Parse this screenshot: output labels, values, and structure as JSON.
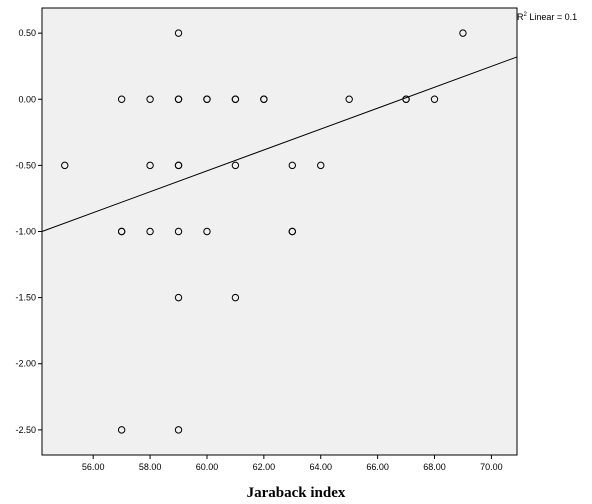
{
  "chart_data": {
    "type": "scatter",
    "title": "",
    "xlabel": "Jaraback index",
    "ylabel": "",
    "xlim": [
      54.2,
      70.9
    ],
    "ylim": [
      -2.69,
      0.69
    ],
    "xticks": [
      "56.00",
      "58.00",
      "60.00",
      "62.00",
      "64.00",
      "66.00",
      "68.00",
      "70.00"
    ],
    "yticks": [
      "0.50",
      "0.00",
      "-0.50",
      "-1.00",
      "-1.50",
      "-2.00",
      "-2.50"
    ],
    "grid": false,
    "background_color": "#f0f0f0",
    "marker_color": "#000000",
    "fit_line": {
      "type": "linear",
      "label_prefix": "R",
      "label_sup": "2",
      "label_suffix": " Linear = 0.1",
      "points": [
        [
          54.2,
          -1.0
        ],
        [
          70.9,
          0.32
        ]
      ]
    },
    "points": [
      {
        "x": 55,
        "y": -0.5
      },
      {
        "x": 57,
        "y": 0.0
      },
      {
        "x": 57,
        "y": -1.0
      },
      {
        "x": 57,
        "y": -1.0
      },
      {
        "x": 57,
        "y": -2.5
      },
      {
        "x": 58,
        "y": 0.0
      },
      {
        "x": 58,
        "y": -0.5
      },
      {
        "x": 58,
        "y": -1.0
      },
      {
        "x": 59,
        "y": 0.5
      },
      {
        "x": 59,
        "y": 0.0
      },
      {
        "x": 59,
        "y": 0.0
      },
      {
        "x": 59,
        "y": -0.5
      },
      {
        "x": 59,
        "y": -0.5
      },
      {
        "x": 59,
        "y": -1.0
      },
      {
        "x": 59,
        "y": -1.5
      },
      {
        "x": 59,
        "y": -2.5
      },
      {
        "x": 60,
        "y": 0.0
      },
      {
        "x": 60,
        "y": 0.0
      },
      {
        "x": 60,
        "y": -1.0
      },
      {
        "x": 61,
        "y": 0.0
      },
      {
        "x": 61,
        "y": 0.0
      },
      {
        "x": 61,
        "y": -0.5
      },
      {
        "x": 61,
        "y": -1.5
      },
      {
        "x": 62,
        "y": 0.0
      },
      {
        "x": 62,
        "y": 0.0
      },
      {
        "x": 63,
        "y": -0.5
      },
      {
        "x": 63,
        "y": -1.0
      },
      {
        "x": 63,
        "y": -1.0
      },
      {
        "x": 64,
        "y": -0.5
      },
      {
        "x": 65,
        "y": 0.0
      },
      {
        "x": 67,
        "y": 0.0
      },
      {
        "x": 67,
        "y": 0.0
      },
      {
        "x": 68,
        "y": 0.0
      },
      {
        "x": 69,
        "y": 0.5
      }
    ]
  }
}
